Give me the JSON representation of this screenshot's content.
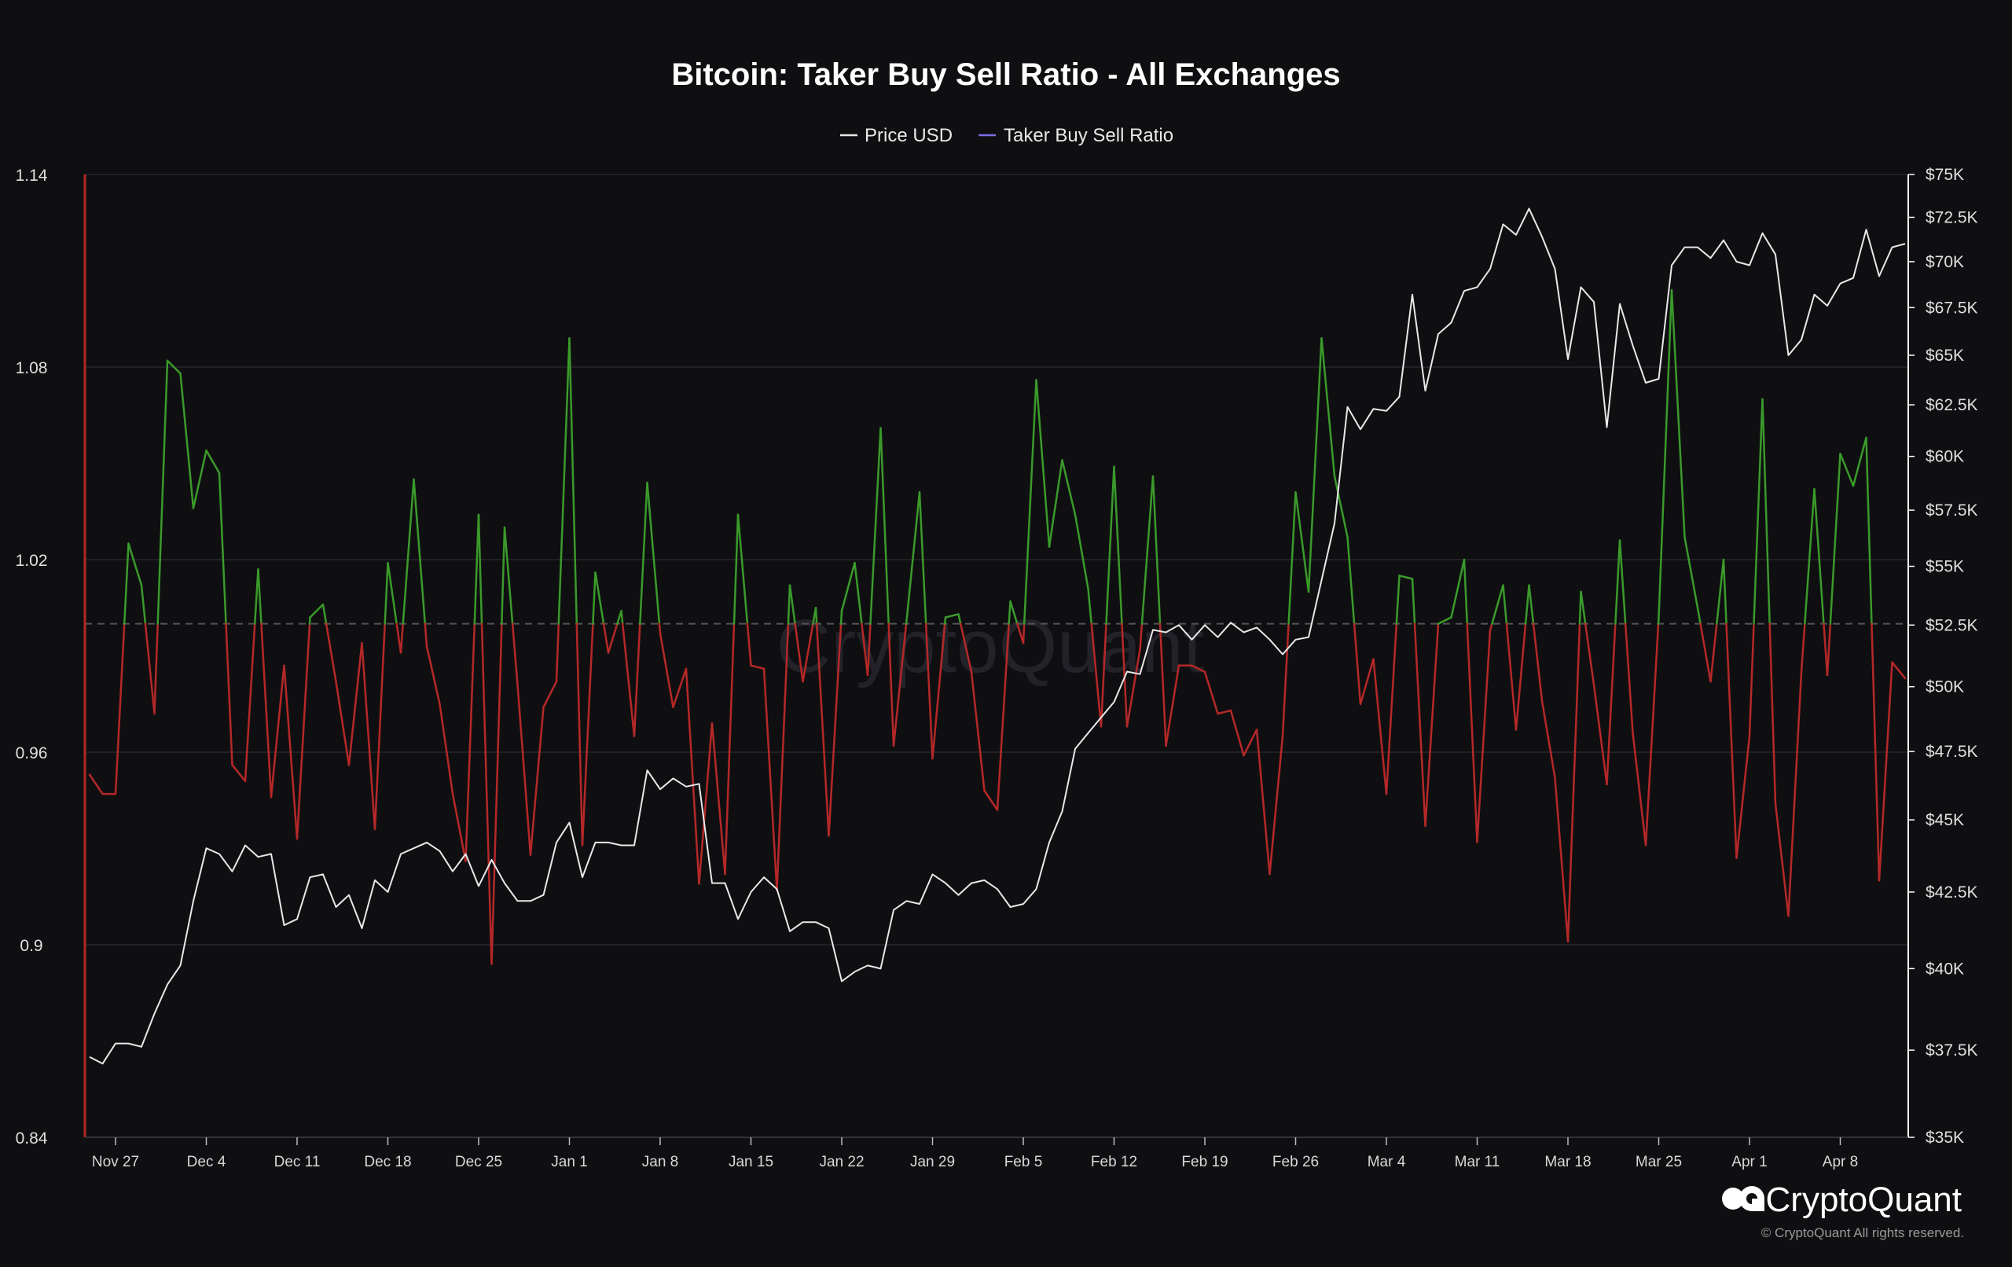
{
  "chart_data": {
    "type": "line",
    "title": "Bitcoin: Taker Buy Sell Ratio - All Exchanges",
    "legend": [
      "Price USD",
      "Taker Buy Sell Ratio"
    ],
    "legend_placement": "top-center",
    "grid": true,
    "x_tick_labels": [
      "Nov 27",
      "Dec 4",
      "Dec 11",
      "Dec 18",
      "Dec 25",
      "Jan 1",
      "Jan 8",
      "Jan 15",
      "Jan 22",
      "Jan 29",
      "Feb 5",
      "Feb 12",
      "Feb 19",
      "Feb 26",
      "Mar 4",
      "Mar 11",
      "Mar 18",
      "Mar 25",
      "Apr 1",
      "Apr 8"
    ],
    "y_left": {
      "ticks": [
        "0.84",
        "0.9",
        "0.96",
        "1.02",
        "1.08",
        "1.14"
      ],
      "ylim": [
        0.84,
        1.14
      ]
    },
    "y_right": {
      "ticks": [
        "$35K",
        "$37.5K",
        "$40K",
        "$42.5K",
        "$45K",
        "$47.5K",
        "$50K",
        "$52.5K",
        "$55K",
        "$57.5K",
        "$60K",
        "$62.5K",
        "$65K",
        "$67.5K",
        "$70K",
        "$72.5K",
        "$75K"
      ],
      "ylim": [
        35000,
        75000
      ],
      "scale": "log"
    },
    "threshold": 1.0,
    "colors": {
      "above": "#3a9a2a",
      "below": "#b52828",
      "price": "#e8e8e8",
      "ratio_legend": "#7b6ee8",
      "threshold": "#555555"
    },
    "series": [
      {
        "name": "Taker Buy Sell Ratio",
        "axis": "left",
        "values": [
          0.953,
          0.947,
          0.947,
          1.025,
          1.012,
          0.972,
          1.082,
          1.078,
          1.036,
          1.054,
          1.047,
          0.956,
          0.951,
          1.017,
          0.946,
          0.987,
          0.933,
          1.002,
          1.006,
          0.982,
          0.956,
          0.994,
          0.936,
          1.019,
          0.991,
          1.045,
          0.993,
          0.975,
          0.947,
          0.926,
          1.034,
          0.894,
          1.03,
          0.981,
          0.928,
          0.974,
          0.982,
          1.089,
          0.931,
          1.016,
          0.991,
          1.004,
          0.965,
          1.044,
          0.997,
          0.974,
          0.986,
          0.919,
          0.969,
          0.922,
          1.034,
          0.987,
          0.986,
          0.917,
          1.012,
          0.982,
          1.005,
          0.934,
          1.004,
          1.019,
          0.984,
          1.061,
          0.962,
          1.001,
          1.041,
          0.958,
          1.002,
          1.003,
          0.985,
          0.948,
          0.942,
          1.007,
          0.994,
          1.076,
          1.024,
          1.051,
          1.034,
          1.011,
          0.968,
          1.049,
          0.968,
          0.992,
          1.046,
          0.962,
          0.987,
          0.987,
          0.985,
          0.972,
          0.973,
          0.959,
          0.967,
          0.922,
          0.965,
          1.041,
          1.01,
          1.089,
          1.046,
          1.027,
          0.975,
          0.989,
          0.947,
          1.015,
          1.014,
          0.937,
          1.0,
          1.002,
          1.02,
          0.932,
          0.998,
          1.012,
          0.967,
          1.012,
          0.976,
          0.952,
          0.901,
          1.01,
          0.981,
          0.95,
          1.026,
          0.966,
          0.931,
          1.002,
          1.104,
          1.027,
          1.005,
          0.982,
          1.02,
          0.927,
          0.965,
          1.07,
          0.944,
          0.909,
          0.985,
          1.042,
          0.984,
          1.053,
          1.043,
          1.058,
          0.92,
          0.988,
          0.983
        ]
      },
      {
        "name": "Price USD",
        "axis": "right",
        "values": [
          37300,
          37100,
          37700,
          37700,
          37600,
          38600,
          39500,
          40100,
          42200,
          44000,
          43800,
          43200,
          44100,
          43700,
          43800,
          41400,
          41600,
          43000,
          43100,
          42000,
          42400,
          41300,
          42900,
          42500,
          43800,
          44000,
          44200,
          43900,
          43200,
          43800,
          42700,
          43600,
          42800,
          42200,
          42200,
          42400,
          44200,
          44900,
          43000,
          44200,
          44200,
          44100,
          44100,
          46800,
          46100,
          46500,
          46200,
          46300,
          42800,
          42800,
          41600,
          42500,
          43000,
          42600,
          41200,
          41500,
          41500,
          41300,
          39600,
          39900,
          40100,
          40000,
          41900,
          42200,
          42100,
          43100,
          42800,
          42400,
          42800,
          42900,
          42600,
          42000,
          42100,
          42600,
          44200,
          45300,
          47600,
          48200,
          48800,
          49400,
          50600,
          50500,
          52300,
          52200,
          52500,
          51900,
          52500,
          52000,
          52600,
          52200,
          52400,
          51900,
          51300,
          51900,
          52000,
          54400,
          56900,
          62400,
          61300,
          62300,
          62200,
          62900,
          68200,
          63200,
          66100,
          66700,
          68400,
          68600,
          69600,
          72100,
          71500,
          73000,
          71400,
          69600,
          64800,
          68600,
          67800,
          61400,
          67700,
          65500,
          63600,
          63800,
          69800,
          70800,
          70800,
          70200,
          71200,
          70000,
          69800,
          71600,
          70400,
          65000,
          65800,
          68200,
          67600,
          68800,
          69100,
          71800,
          69200,
          70800,
          71000
        ]
      }
    ]
  },
  "watermark_text": "CryptoQuant",
  "brand": {
    "name": "CryptoQuant",
    "copyright": "© CryptoQuant All rights reserved."
  }
}
